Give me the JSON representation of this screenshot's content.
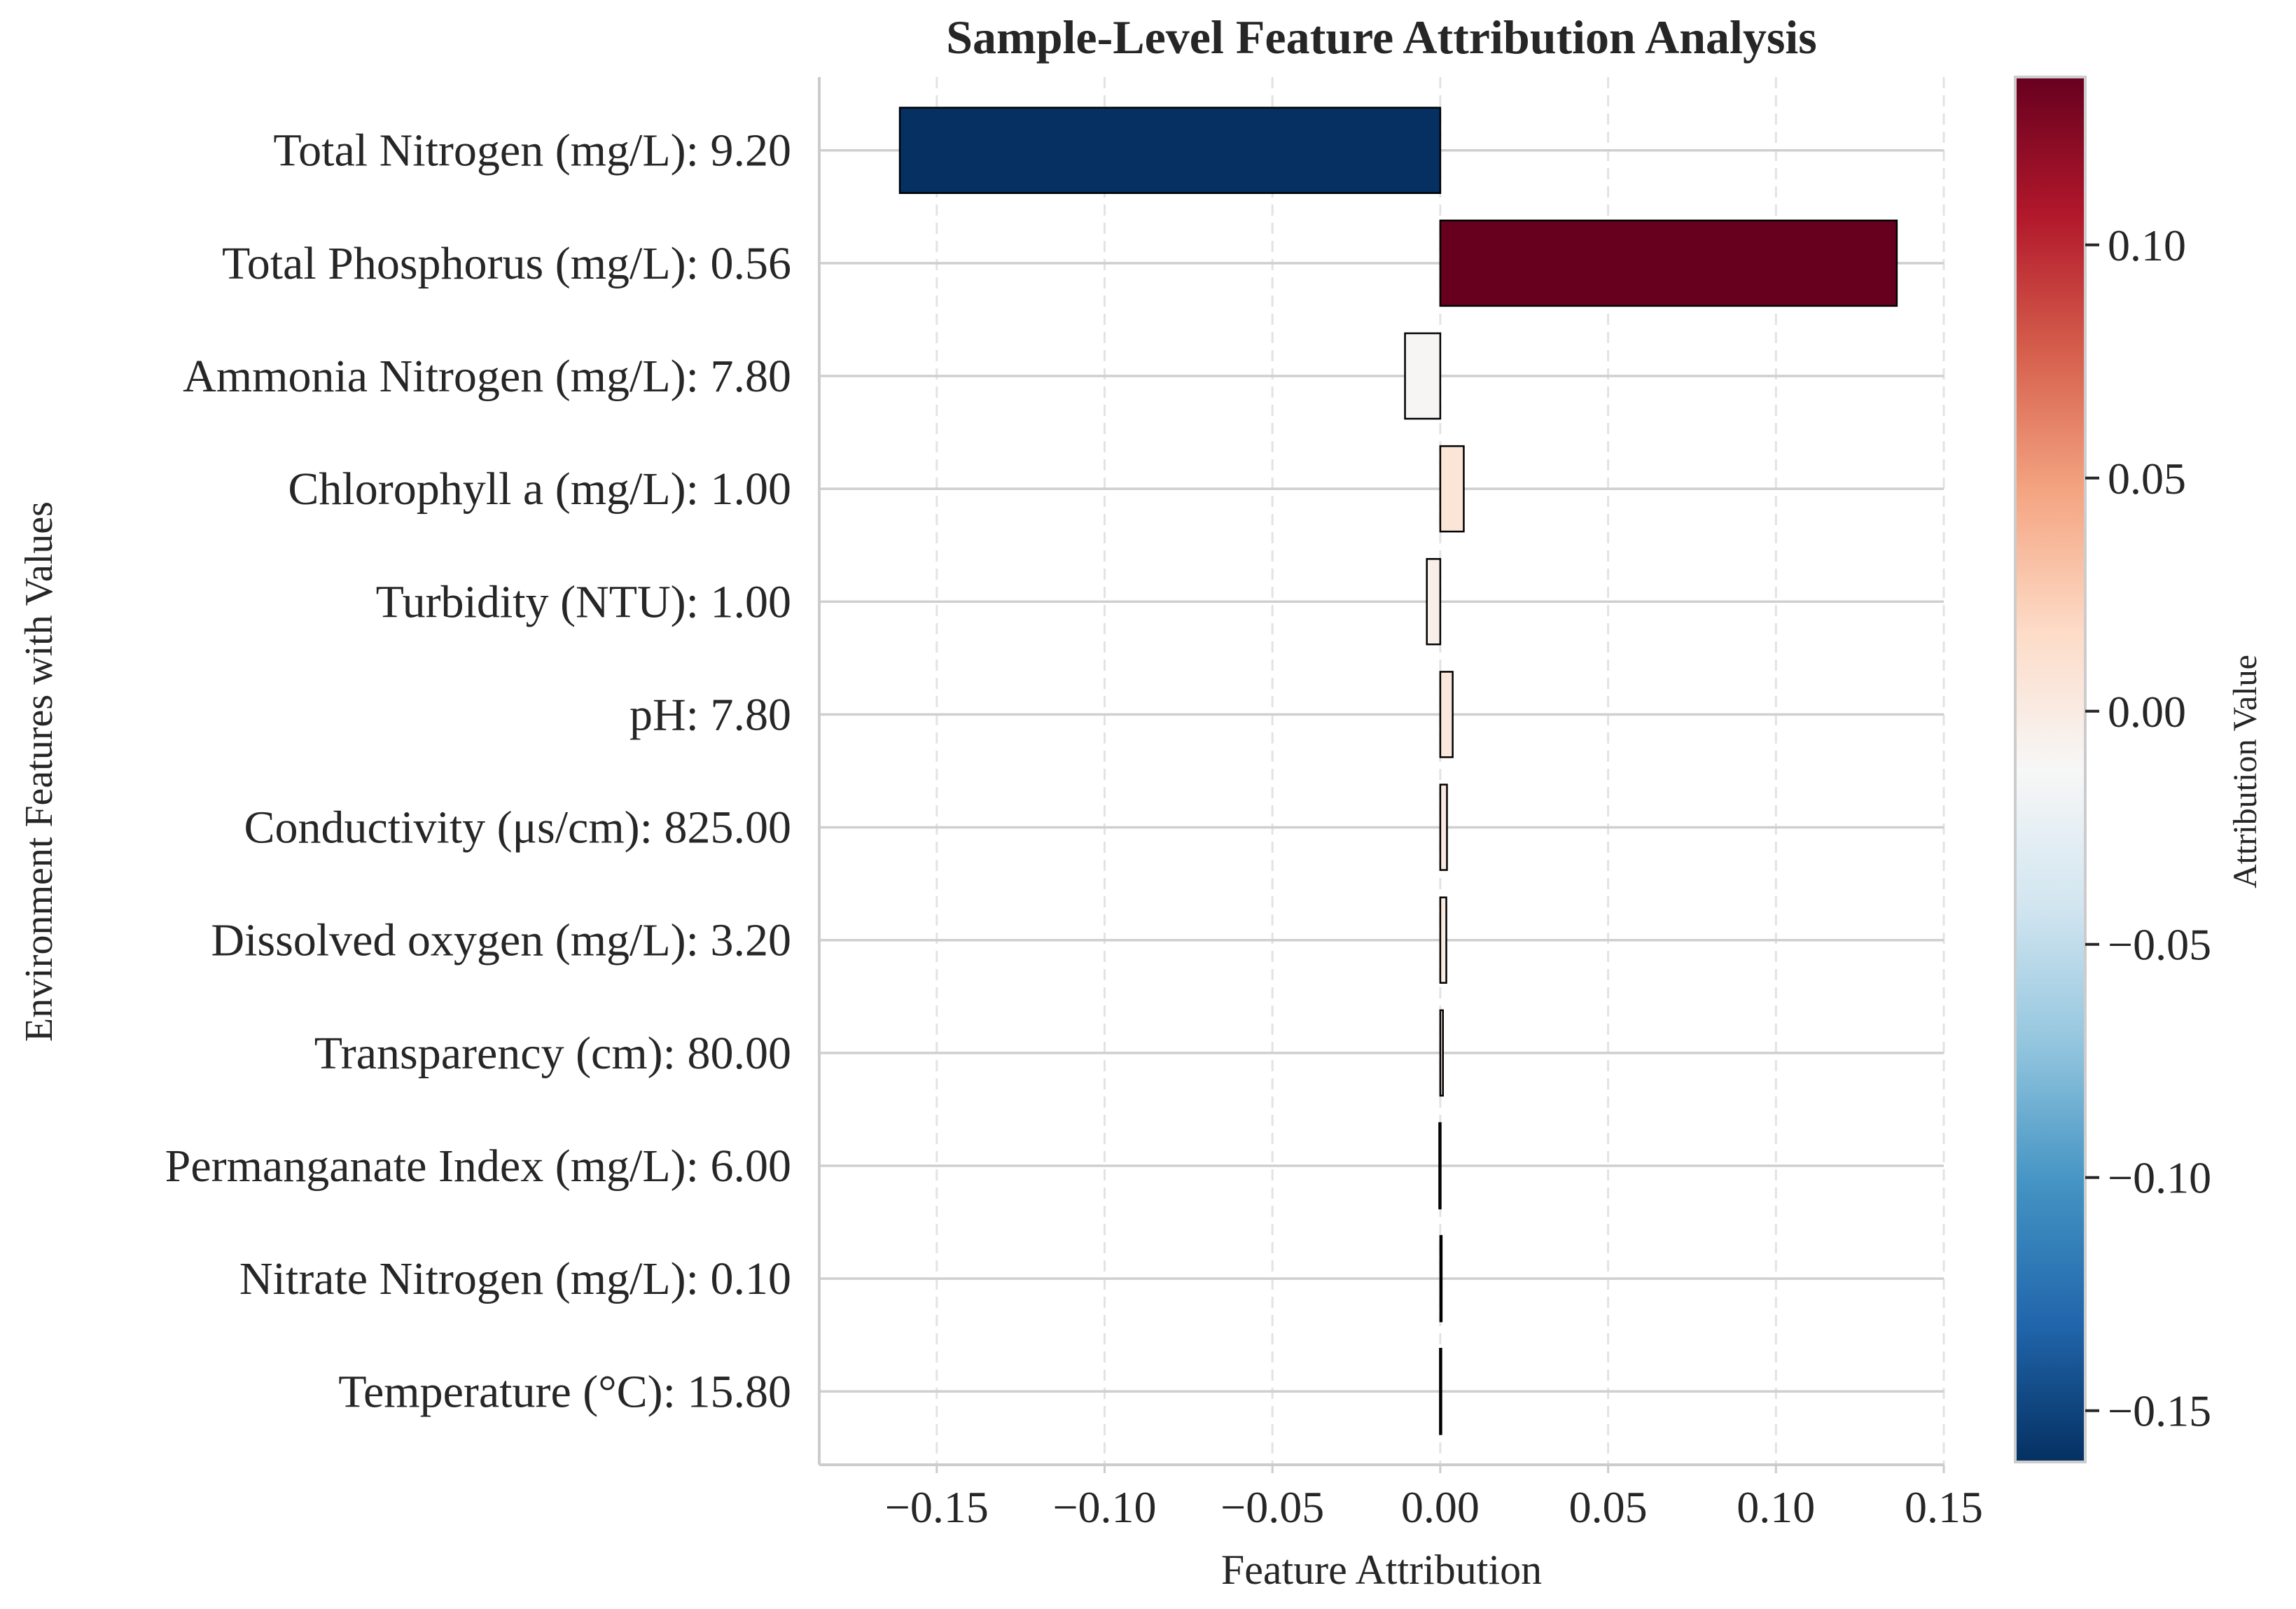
{
  "chart_data": {
    "type": "bar",
    "orientation": "horizontal",
    "title": "Sample-Level Feature Attribution Analysis",
    "xlabel": "Feature Attribution",
    "ylabel": "Environment Features with Values",
    "xlim": [
      -0.185,
      0.15
    ],
    "xticks": [
      -0.15,
      -0.1,
      -0.05,
      0.0,
      0.05,
      0.1,
      0.15
    ],
    "xtick_labels": [
      "−0.15",
      "−0.10",
      "−0.05",
      "0.00",
      "0.05",
      "0.10",
      "0.15"
    ],
    "grid": true,
    "categories": [
      "Total Nitrogen (mg/L): 9.20",
      "Total Phosphorus (mg/L): 0.56",
      "Ammonia Nitrogen (mg/L): 7.80",
      "Chlorophyll a (mg/L): 1.00",
      "Turbidity (NTU): 1.00",
      "pH: 7.80",
      "Conductivity (μs/cm): 825.00",
      "Dissolved oxygen (mg/L): 3.20",
      "Transparency (cm): 80.00",
      "Permanganate Index (mg/L): 6.00",
      "Nitrate Nitrogen (mg/L): 0.10",
      "Temperature (°C): 15.80"
    ],
    "values": [
      -0.161,
      0.136,
      -0.0105,
      0.007,
      -0.004,
      0.0037,
      0.002,
      0.0018,
      0.0008,
      -0.0003,
      0.0002,
      -0.0001
    ],
    "colorbar": {
      "label": "Attribution Value",
      "colormap": "RdBu_r",
      "range": [
        -0.161,
        0.136
      ],
      "ticks": [
        -0.15,
        -0.1,
        -0.05,
        0.0,
        0.05,
        0.1
      ],
      "tick_labels": [
        "−0.15",
        "−0.10",
        "−0.05",
        "0.00",
        "0.05",
        "0.10"
      ]
    },
    "colors": {
      "stops": [
        "#053061",
        "#2166ac",
        "#4393c3",
        "#92c5de",
        "#d1e5f0",
        "#f7f7f7",
        "#fddbc7",
        "#f4a582",
        "#d6604d",
        "#b2182b",
        "#67001f"
      ],
      "grid": "#cfcfcf",
      "axis": "#cccccc",
      "text": "#262626",
      "bar_edge": "#000000"
    }
  }
}
